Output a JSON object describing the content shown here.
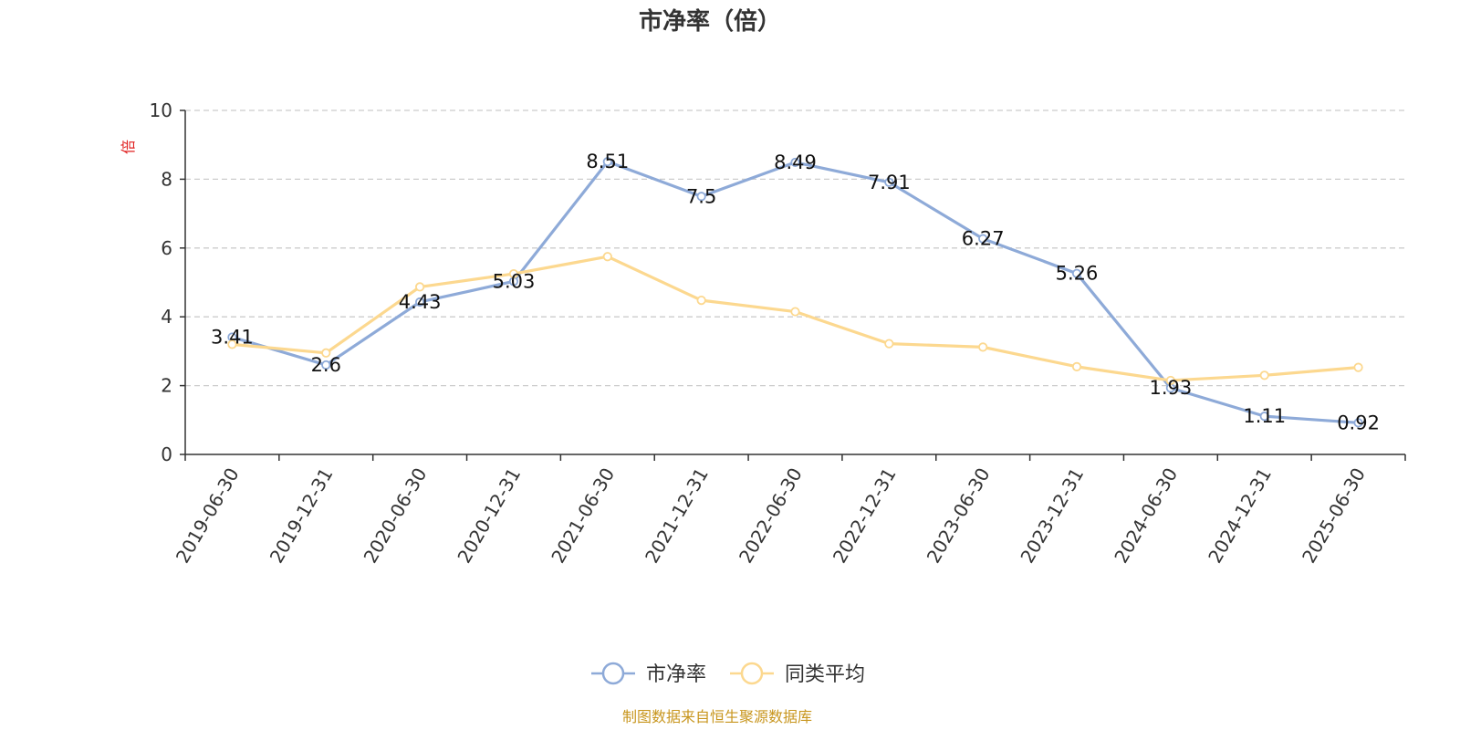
{
  "chart_data": {
    "type": "line",
    "title": "市净率（倍）",
    "ylabel": "倍",
    "xlabel": "",
    "ylim": [
      0,
      10
    ],
    "yticks": [
      0,
      2,
      4,
      6,
      8,
      10
    ],
    "grid": true,
    "legend_position": "bottom",
    "categories": [
      "2019-06-30",
      "2019-12-31",
      "2020-06-30",
      "2020-12-31",
      "2021-06-30",
      "2021-12-31",
      "2022-06-30",
      "2022-12-31",
      "2023-06-30",
      "2023-12-31",
      "2024-06-30",
      "2024-12-31",
      "2025-06-30"
    ],
    "series": [
      {
        "name": "市净率",
        "color": "#8eaad8",
        "values": [
          3.41,
          2.6,
          4.43,
          5.03,
          8.51,
          7.5,
          8.49,
          7.91,
          6.27,
          5.26,
          1.93,
          1.11,
          0.92
        ],
        "labels": [
          "3.41",
          "2.6",
          "4.43",
          "5.03",
          "8.51",
          "7.5",
          "8.49",
          "7.91",
          "6.27",
          "5.26",
          "1.93",
          "1.11",
          "0.92"
        ]
      },
      {
        "name": "同类平均",
        "color": "#fcd88f",
        "values": [
          3.2,
          2.95,
          4.87,
          5.25,
          5.75,
          4.48,
          4.15,
          3.22,
          3.12,
          2.55,
          2.15,
          2.3,
          2.53
        ]
      }
    ],
    "source": "制图数据来自恒生聚源数据库",
    "source_color": "#c8961e",
    "unit_color": "#e02020"
  }
}
